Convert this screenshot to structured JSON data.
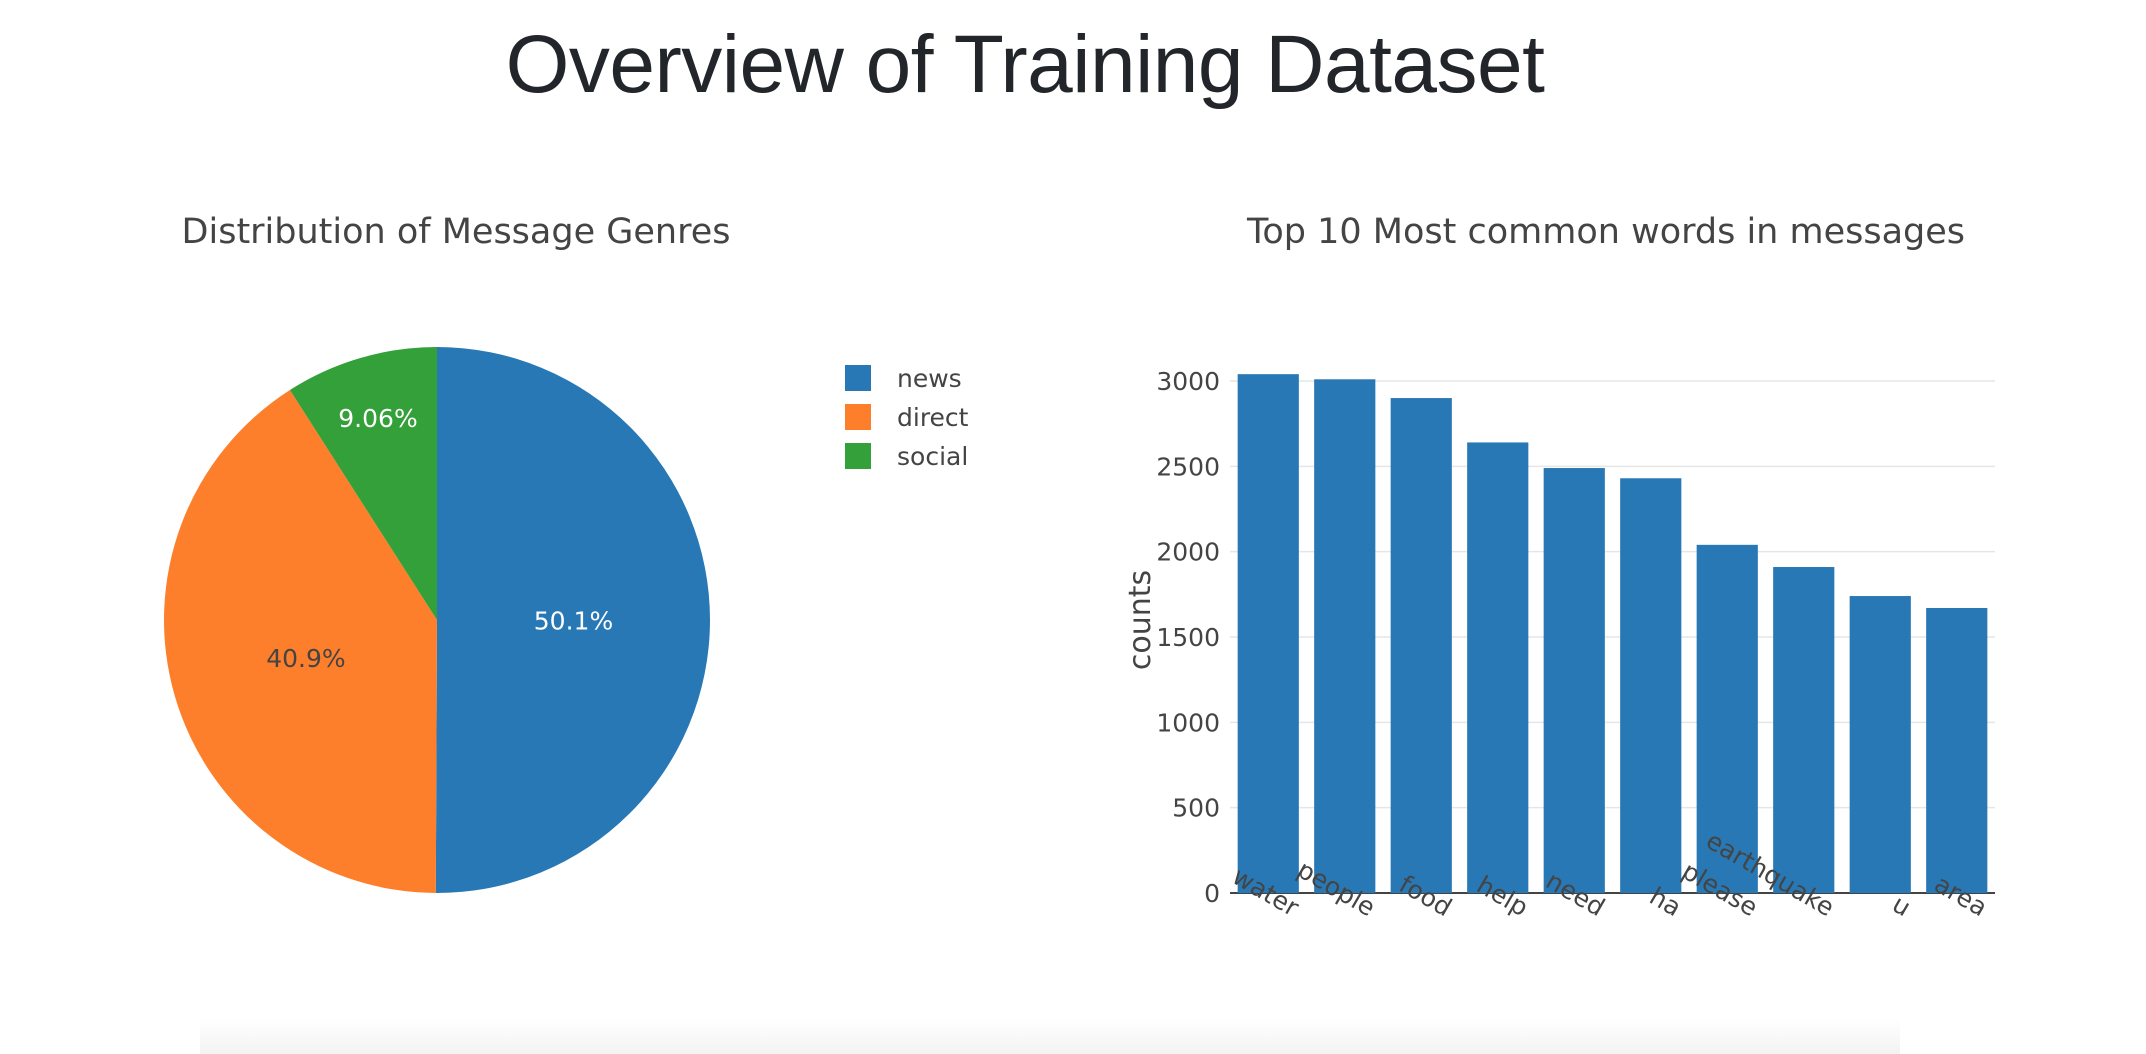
{
  "page": {
    "title": "Overview of Training Dataset"
  },
  "colors": {
    "news": "#2878b5",
    "direct": "#fe7f2b",
    "social": "#33a039",
    "bar": "#2878b5",
    "grid": "#e6e6e6",
    "text": "#444444"
  },
  "chart_data": [
    {
      "type": "pie",
      "title": "Distribution of Message Genres",
      "labels": [
        "news",
        "direct",
        "social"
      ],
      "values": [
        50.1,
        40.9,
        9.06
      ],
      "value_labels": [
        "50.1%",
        "40.9%",
        "9.06%"
      ],
      "legend_position": "top-right"
    },
    {
      "type": "bar",
      "title": "Top 10 Most common words in messages",
      "categories": [
        "water",
        "people",
        "food",
        "help",
        "need",
        "ha",
        "please",
        "earthquake",
        "u",
        "area"
      ],
      "values": [
        3040,
        3010,
        2900,
        2640,
        2490,
        2430,
        2040,
        1910,
        1740,
        1670
      ],
      "xlabel": "",
      "ylabel": "counts",
      "ylim": [
        0,
        3000
      ],
      "yticks": [
        0,
        500,
        1000,
        1500,
        2000,
        2500,
        3000
      ],
      "grid": true
    }
  ]
}
